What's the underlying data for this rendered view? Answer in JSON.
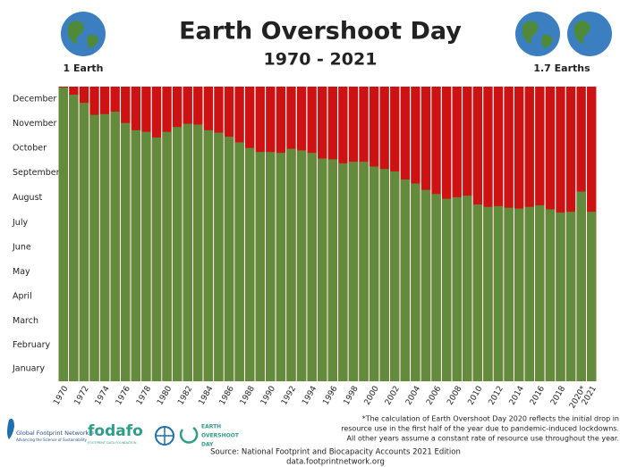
{
  "chart_data": {
    "type": "bar",
    "title": "Earth Overshoot Day",
    "subtitle": "1970 - 2021",
    "left_label": "1 Earth",
    "right_label": "1.7 Earths",
    "categories": [
      "1970",
      null,
      "1972",
      null,
      "1974",
      null,
      "1976",
      null,
      "1978",
      null,
      "1980",
      null,
      "1982",
      null,
      "1984",
      null,
      "1986",
      null,
      "1988",
      null,
      "1990",
      null,
      "1992",
      null,
      "1994",
      null,
      "1996",
      null,
      "1998",
      null,
      "2000",
      null,
      "2002",
      null,
      "2004",
      null,
      "2006",
      null,
      "2008",
      null,
      "2010",
      null,
      "2012",
      null,
      "2014",
      null,
      "2016",
      null,
      "2018",
      null,
      "2020*",
      "2021"
    ],
    "values": [
      364,
      355,
      345,
      330,
      331,
      334,
      320,
      311,
      309,
      302,
      309,
      315,
      319,
      318,
      311,
      308,
      303,
      296,
      289,
      284,
      284,
      283,
      288,
      286,
      283,
      276,
      275,
      270,
      272,
      272,
      266,
      263,
      260,
      250,
      245,
      237,
      232,
      226,
      228,
      230,
      219,
      216,
      217,
      215,
      214,
      216,
      218,
      213,
      209,
      210,
      235,
      210
    ],
    "color": "#628c3c",
    "remainder_color": "#cc1212",
    "ylim": [
      0,
      365
    ],
    "yticks": [
      {
        "value": 15.5,
        "label": "January"
      },
      {
        "value": 45,
        "label": "February"
      },
      {
        "value": 74.5,
        "label": "March"
      },
      {
        "value": 105,
        "label": "April"
      },
      {
        "value": 135.5,
        "label": "May"
      },
      {
        "value": 166,
        "label": "June"
      },
      {
        "value": 196.5,
        "label": "July"
      },
      {
        "value": 227.5,
        "label": "August"
      },
      {
        "value": 258,
        "label": "September"
      },
      {
        "value": 288.5,
        "label": "October"
      },
      {
        "value": 319,
        "label": "November"
      },
      {
        "value": 349.5,
        "label": "December"
      }
    ],
    "grid": false,
    "footnote": [
      "*The calculation of Earth Overshoot Day 2020 reflects the initial drop in",
      "resource use in the first half of the year due to pandemic-induced lockdowns.",
      "All other years assume a constant rate of resource use throughout the year."
    ],
    "source": [
      "Source: National Footprint and Biocapacity Accounts 2021 Edition",
      "data.footprintnetwork.org"
    ],
    "logos": [
      "Global Footprint Network®",
      "Advancing the Science of Sustainability",
      "fodafo",
      "FOOTPRINT DATA FOUNDATION",
      "EARTH",
      "OVERSHOOT",
      "DAY"
    ]
  }
}
